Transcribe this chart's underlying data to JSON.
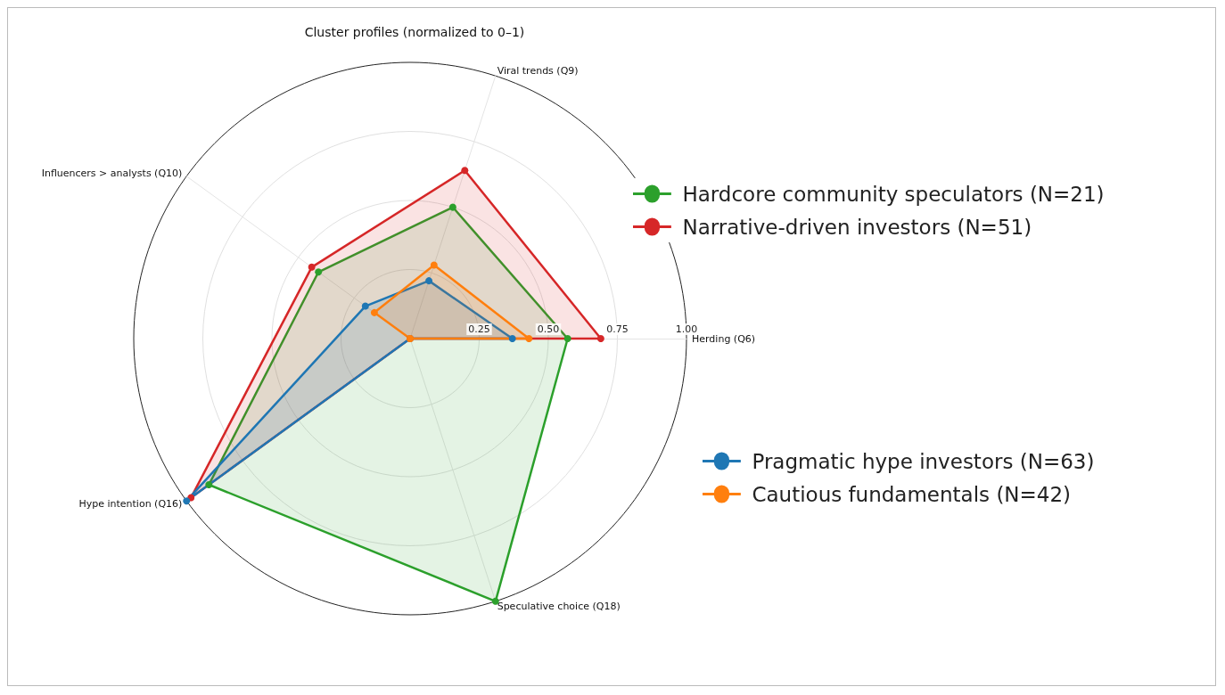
{
  "chart_data": {
    "type": "radar",
    "title": "Cluster profiles (normalized to 0–1)",
    "categories": [
      "Viral trends (Q9)",
      "Herding (Q6)",
      "Speculative choice (Q18)",
      "Hype intention (Q16)",
      "Influencers > analysts (Q10)"
    ],
    "series": [
      {
        "name": "Hardcore community speculators (N=21)",
        "color": "#2ca02c",
        "values": [
          0.5,
          0.57,
          1.0,
          0.9,
          0.41
        ]
      },
      {
        "name": "Narrative-driven investors (N=51)",
        "color": "#d62728",
        "values": [
          0.64,
          0.69,
          0,
          0.98,
          0.44
        ]
      },
      {
        "name": "Pragmatic hype investors (N=63)",
        "color": "#1f77b4",
        "values": [
          0.22,
          0.37,
          0,
          1.0,
          0.2
        ]
      },
      {
        "name": "Cautious fundamentals (N=42)",
        "color": "#ff7f0e",
        "values": [
          0.28,
          0.43,
          0,
          0,
          0.16
        ]
      }
    ],
    "ylim": [
      0,
      1
    ],
    "yticks": [
      {
        "value": 0.25,
        "label": "0.25"
      },
      {
        "value": 0.5,
        "label": "0.50"
      },
      {
        "value": 0.75,
        "label": "0.75"
      },
      {
        "value": 1.0,
        "label": "1.00"
      }
    ],
    "grid": true,
    "legend": "right",
    "marker": "circle",
    "line_style": "solid"
  }
}
